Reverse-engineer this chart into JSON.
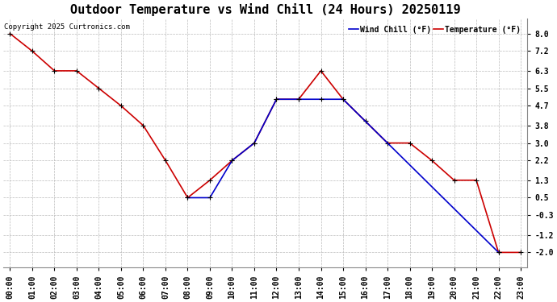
{
  "title": "Outdoor Temperature vs Wind Chill (24 Hours) 20250119",
  "copyright": "Copyright 2025 Curtronics.com",
  "legend_wind_chill": "Wind Chill (°F)",
  "legend_temperature": "Temperature (°F)",
  "hours": [
    "00:00",
    "01:00",
    "02:00",
    "03:00",
    "04:00",
    "05:00",
    "06:00",
    "07:00",
    "08:00",
    "09:00",
    "10:00",
    "11:00",
    "12:00",
    "13:00",
    "14:00",
    "15:00",
    "16:00",
    "17:00",
    "18:00",
    "19:00",
    "20:00",
    "21:00",
    "22:00",
    "23:00"
  ],
  "temperature": [
    8.0,
    7.2,
    6.3,
    6.3,
    5.5,
    4.7,
    3.8,
    2.2,
    0.5,
    1.3,
    2.2,
    3.0,
    5.0,
    5.0,
    6.3,
    5.0,
    4.0,
    3.0,
    3.0,
    2.2,
    1.3,
    1.3,
    -2.0,
    -2.0
  ],
  "wind_chill": [
    null,
    null,
    null,
    null,
    null,
    null,
    null,
    null,
    0.5,
    0.5,
    2.2,
    3.0,
    5.0,
    5.0,
    5.0,
    5.0,
    null,
    null,
    null,
    null,
    null,
    null,
    -2.0,
    null
  ],
  "ylim_min": -2.7,
  "ylim_max": 8.7,
  "yticks": [
    8.0,
    7.2,
    6.3,
    5.5,
    4.7,
    3.8,
    3.0,
    2.2,
    1.3,
    0.5,
    -0.3,
    -1.2,
    -2.0
  ],
  "temp_color": "#cc0000",
  "wind_chill_color": "#0000cc",
  "marker_color": "#000000",
  "grid_color": "#bbbbbb",
  "background_color": "#ffffff",
  "title_fontsize": 11,
  "axis_fontsize": 7,
  "copyright_fontsize": 6.5
}
